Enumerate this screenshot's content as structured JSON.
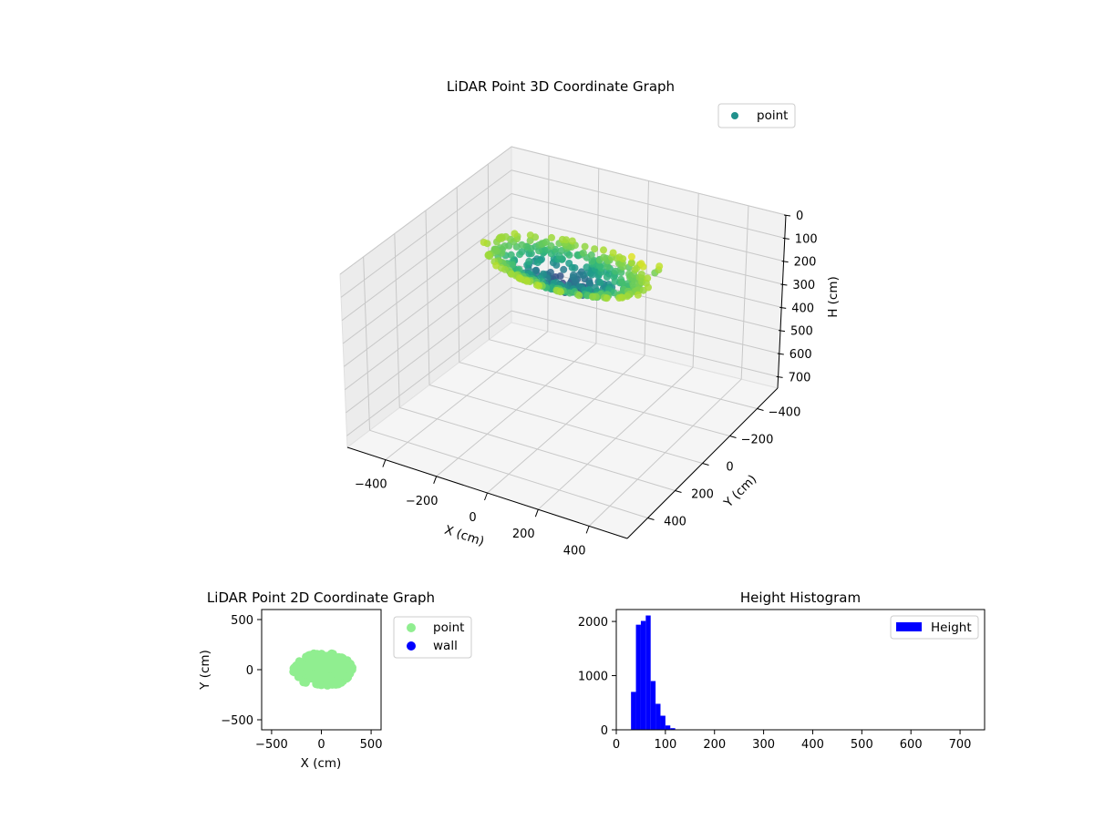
{
  "chart_data": [
    {
      "type": "scatter",
      "subtype": "3d",
      "title": "LiDAR Point 3D Coordinate Graph",
      "xlabel": "X (cm)",
      "ylabel": "Y (cm)",
      "zlabel": "H (cm)",
      "xlim": [
        -550,
        550
      ],
      "ylim": [
        -550,
        550
      ],
      "zlim": [
        0,
        750
      ],
      "z_inverted": true,
      "xticks": [
        "−400",
        "−200",
        "0",
        "200",
        "400"
      ],
      "yticks": [
        "400",
        "200",
        "0",
        "−200",
        "−400"
      ],
      "zticks": [
        "0",
        "100",
        "200",
        "300",
        "400",
        "500",
        "600",
        "700"
      ],
      "grid": true,
      "legend": {
        "position": "top-right",
        "entries": [
          {
            "label": "point",
            "color": "#21918c"
          }
        ]
      },
      "colormap": "viridis",
      "series": [
        {
          "name": "point",
          "description": "dense elliptical cluster of points near the origin, roughly X −300..330, Y −180..180, H 30..150, colored by height",
          "x_range": [
            -300,
            330
          ],
          "y_range": [
            -180,
            180
          ],
          "h_range": [
            30,
            150
          ]
        }
      ]
    },
    {
      "type": "scatter",
      "title": "LiDAR Point 2D Coordinate Graph",
      "xlabel": "X (cm)",
      "ylabel": "Y (cm)",
      "xlim": [
        -600,
        600
      ],
      "ylim": [
        -600,
        600
      ],
      "xticks": [
        "−500",
        "0",
        "500"
      ],
      "yticks": [
        "500",
        "0",
        "−500"
      ],
      "grid": false,
      "legend": {
        "position": "outside-right",
        "entries": [
          {
            "label": "point",
            "color": "#90ee90"
          },
          {
            "label": "wall",
            "color": "#0000ff"
          }
        ]
      },
      "series": [
        {
          "name": "point",
          "color": "#90ee90",
          "x_range": [
            -300,
            330
          ],
          "y_range": [
            -180,
            180
          ]
        },
        {
          "name": "wall",
          "color": "#0000ff",
          "count": 0
        }
      ]
    },
    {
      "type": "bar",
      "subtype": "histogram",
      "title": "Height Histogram",
      "xlabel": "",
      "ylabel": "",
      "xlim": [
        0,
        750
      ],
      "ylim": [
        0,
        2220
      ],
      "xticks": [
        "0",
        "100",
        "200",
        "300",
        "400",
        "500",
        "600",
        "700"
      ],
      "yticks": [
        "0",
        "1000",
        "2000"
      ],
      "bar_color": "#0000ff",
      "legend": {
        "position": "top-right",
        "entries": [
          {
            "label": "Height",
            "color": "#0000ff"
          }
        ]
      },
      "bin_width": 10,
      "bins": [
        {
          "start": 30,
          "end": 40,
          "count": 700
        },
        {
          "start": 40,
          "end": 50,
          "count": 1940
        },
        {
          "start": 50,
          "end": 60,
          "count": 2010
        },
        {
          "start": 60,
          "end": 70,
          "count": 2110
        },
        {
          "start": 70,
          "end": 80,
          "count": 900
        },
        {
          "start": 80,
          "end": 90,
          "count": 480
        },
        {
          "start": 90,
          "end": 100,
          "count": 260
        },
        {
          "start": 100,
          "end": 110,
          "count": 80
        },
        {
          "start": 110,
          "end": 120,
          "count": 30
        },
        {
          "start": 120,
          "end": 130,
          "count": 8
        },
        {
          "start": 130,
          "end": 140,
          "count": 3
        }
      ]
    }
  ]
}
